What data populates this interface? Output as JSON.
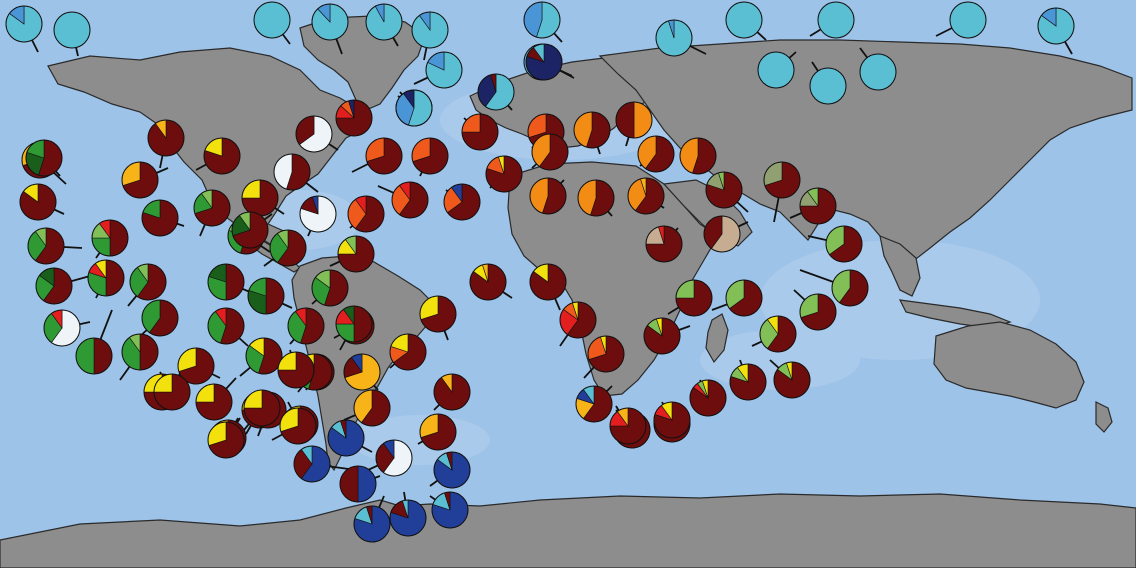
{
  "colors": {
    "ocean": "#9ec3e8",
    "ocean_shelf": "#b7d3ef",
    "land": "#8d8d8d",
    "categories": {
      "maroon": "#6e0d0d",
      "cyan": "#5bbfd4",
      "lightblue": "#4a95d6",
      "navy": "#1c2466",
      "royal": "#213f99",
      "red": "#e21e1e",
      "orange": "#ef5a1c",
      "amber": "#f38c14",
      "gold": "#f7b318",
      "yellow": "#f2e10d",
      "darkgreen": "#1a5e1c",
      "green": "#2f9a33",
      "lightgreen": "#82bf57",
      "sage": "#90a070",
      "tan": "#c6ad92",
      "white": "#eef4f8"
    }
  },
  "pies": [
    {
      "id": "arc-1",
      "comp": {
        "cyan": 0.85,
        "lightblue": 0.15
      }
    },
    {
      "id": "arc-2",
      "comp": {
        "cyan": 1.0
      }
    },
    {
      "id": "arc-3",
      "comp": {
        "cyan": 1.0
      }
    },
    {
      "id": "arc-4",
      "comp": {
        "cyan": 0.88,
        "lightblue": 0.12
      }
    },
    {
      "id": "arc-5",
      "comp": {
        "cyan": 0.92,
        "lightblue": 0.08
      }
    },
    {
      "id": "arc-6",
      "comp": {
        "cyan": 0.9,
        "lightblue": 0.1
      }
    },
    {
      "id": "arc-7",
      "comp": {
        "cyan": 0.82,
        "lightblue": 0.18
      }
    },
    {
      "id": "arc-8",
      "comp": {
        "cyan": 0.85,
        "navy": 0.1,
        "lightblue": 0.05
      }
    },
    {
      "id": "arc-9",
      "comp": {
        "cyan": 0.6,
        "navy": 0.35,
        "maroon": 0.05
      }
    },
    {
      "id": "arc-10",
      "comp": {
        "cyan": 0.55,
        "lightblue": 0.45
      }
    },
    {
      "id": "arc-11",
      "comp": {
        "cyan": 1.0
      }
    },
    {
      "id": "arc-12",
      "comp": {
        "cyan": 0.95,
        "lightblue": 0.05
      }
    },
    {
      "id": "arc-13",
      "comp": {
        "cyan": 1.0
      }
    },
    {
      "id": "arc-14",
      "comp": {
        "cyan": 1.0
      }
    },
    {
      "id": "arc-15",
      "comp": {
        "cyan": 1.0
      }
    },
    {
      "id": "arc-16",
      "comp": {
        "cyan": 1.0
      }
    },
    {
      "id": "arc-17",
      "comp": {
        "cyan": 1.0
      }
    },
    {
      "id": "arc-18",
      "comp": {
        "cyan": 1.0
      }
    },
    {
      "id": "arc-19",
      "comp": {
        "cyan": 0.85,
        "lightblue": 0.15
      }
    },
    {
      "id": "natl-1",
      "comp": {
        "navy": 0.8,
        "maroon": 0.1,
        "cyan": 0.1
      }
    },
    {
      "id": "natl-2",
      "comp": {
        "cyan": 0.55,
        "lightblue": 0.35,
        "navy": 0.1
      }
    },
    {
      "id": "natl-3",
      "comp": {
        "maroon": 0.75,
        "red": 0.12,
        "orange": 0.08,
        "navy": 0.05
      }
    },
    {
      "id": "natl-4",
      "comp": {
        "white": 0.65,
        "maroon": 0.35
      }
    },
    {
      "id": "natl-5",
      "comp": {
        "maroon": 0.7,
        "orange": 0.3
      }
    },
    {
      "id": "natl-6",
      "comp": {
        "maroon": 0.7,
        "orange": 0.3
      }
    },
    {
      "id": "natl-7",
      "comp": {
        "maroon": 0.75,
        "orange": 0.25
      }
    },
    {
      "id": "natl-8",
      "comp": {
        "maroon": 0.8,
        "orange": 0.15,
        "yellow": 0.05
      }
    },
    {
      "id": "natl-9",
      "comp": {
        "maroon": 0.6,
        "orange": 0.3,
        "red": 0.1
      }
    },
    {
      "id": "natl-10",
      "comp": {
        "maroon": 0.6,
        "orange": 0.3,
        "red": 0.1
      }
    },
    {
      "id": "natl-11",
      "comp": {
        "maroon": 0.65,
        "orange": 0.25,
        "royal": 0.1
      }
    },
    {
      "id": "natl-12",
      "comp": {
        "maroon": 0.55,
        "white": 0.45
      }
    },
    {
      "id": "natl-13",
      "comp": {
        "white": 0.8,
        "maroon": 0.15,
        "royal": 0.05
      }
    },
    {
      "id": "natl-14",
      "comp": {
        "maroon": 0.7,
        "orange": 0.3
      }
    },
    {
      "id": "med-1",
      "comp": {
        "maroon": 0.55,
        "amber": 0.45
      }
    },
    {
      "id": "med-2",
      "comp": {
        "amber": 0.5,
        "maroon": 0.5
      }
    },
    {
      "id": "med-3",
      "comp": {
        "maroon": 0.6,
        "amber": 0.4
      }
    },
    {
      "id": "med-4",
      "comp": {
        "maroon": 0.55,
        "amber": 0.45
      }
    },
    {
      "id": "med-5",
      "comp": {
        "maroon": 0.6,
        "amber": 0.4
      }
    },
    {
      "id": "med-6",
      "comp": {
        "maroon": 0.55,
        "amber": 0.45
      }
    },
    {
      "id": "med-7",
      "comp": {
        "maroon": 0.55,
        "amber": 0.45
      }
    },
    {
      "id": "med-8",
      "comp": {
        "maroon": 0.6,
        "amber": 0.35,
        "gold": 0.05
      }
    },
    {
      "id": "io-1",
      "comp": {
        "maroon": 0.8,
        "sage": 0.15,
        "lightgreen": 0.05
      }
    },
    {
      "id": "io-2",
      "comp": {
        "maroon": 0.7,
        "sage": 0.3
      }
    },
    {
      "id": "io-3",
      "comp": {
        "maroon": 0.75,
        "sage": 0.15,
        "lightgreen": 0.1
      }
    },
    {
      "id": "io-4",
      "comp": {
        "maroon": 0.75,
        "tan": 0.2,
        "red": 0.05
      }
    },
    {
      "id": "io-5",
      "comp": {
        "tan": 0.6,
        "maroon": 0.4
      }
    },
    {
      "id": "io-6",
      "comp": {
        "maroon": 0.65,
        "lightgreen": 0.35
      }
    },
    {
      "id": "io-7",
      "comp": {
        "maroon": 0.6,
        "lightgreen": 0.4
      }
    },
    {
      "id": "io-8",
      "comp": {
        "maroon": 0.65,
        "lightgreen": 0.35
      }
    },
    {
      "id": "io-9",
      "comp": {
        "maroon": 0.7,
        "lightgreen": 0.3
      }
    },
    {
      "id": "io-10",
      "comp": {
        "maroon": 0.6,
        "lightgreen": 0.3,
        "yellow": 0.1
      }
    },
    {
      "id": "io-11",
      "comp": {
        "maroon": 0.75,
        "lightgreen": 0.25
      }
    },
    {
      "id": "io-12",
      "comp": {
        "maroon": 0.85,
        "lightgreen": 0.1,
        "yellow": 0.05
      }
    },
    {
      "id": "io-13",
      "comp": {
        "maroon": 0.8,
        "lightgreen": 0.1,
        "yellow": 0.1
      }
    },
    {
      "id": "io-14",
      "comp": {
        "maroon": 0.85,
        "lightgreen": 0.1,
        "yellow": 0.05
      }
    },
    {
      "id": "io-15",
      "comp": {
        "maroon": 0.85,
        "red": 0.05,
        "lightgreen": 0.05,
        "yellow": 0.05
      }
    },
    {
      "id": "io-16",
      "comp": {
        "maroon": 0.85,
        "lightgreen": 0.15
      }
    },
    {
      "id": "satl-1",
      "comp": {
        "maroon": 0.85,
        "yellow": 0.1,
        "gold": 0.05
      }
    },
    {
      "id": "satl-2",
      "comp": {
        "maroon": 0.85,
        "yellow": 0.15
      }
    },
    {
      "id": "satl-3",
      "comp": {
        "maroon": 0.6,
        "red": 0.25,
        "orange": 0.1,
        "yellow": 0.05
      }
    },
    {
      "id": "satl-4",
      "comp": {
        "maroon": 0.7,
        "orange": 0.25,
        "yellow": 0.05
      }
    },
    {
      "id": "satl-5",
      "comp": {
        "maroon": 0.85,
        "red": 0.1,
        "gold": 0.05
      }
    },
    {
      "id": "satl-6",
      "comp": {
        "maroon": 0.6,
        "gold": 0.2,
        "royal": 0.1,
        "cyan": 0.1
      }
    },
    {
      "id": "satl-7",
      "comp": {
        "maroon": 0.75,
        "red": 0.15,
        "gold": 0.1
      }
    },
    {
      "id": "satl-8",
      "comp": {
        "maroon": 0.8,
        "red": 0.1,
        "yellow": 0.1
      }
    },
    {
      "id": "sam-1",
      "comp": {
        "maroon": 0.7,
        "yellow": 0.3
      }
    },
    {
      "id": "sam-2",
      "comp": {
        "maroon": 0.65,
        "orange": 0.15,
        "yellow": 0.2
      }
    },
    {
      "id": "sam-3",
      "comp": {
        "gold": 0.7,
        "maroon": 0.2,
        "royal": 0.1
      }
    },
    {
      "id": "sam-4",
      "comp": {
        "maroon": 0.9,
        "gold": 0.1
      }
    },
    {
      "id": "sam-5",
      "comp": {
        "maroon": 0.6,
        "gold": 0.4
      }
    },
    {
      "id": "sam-6",
      "comp": {
        "maroon": 0.7,
        "gold": 0.3
      }
    },
    {
      "id": "sam-7",
      "comp": {
        "maroon": 0.8,
        "yellow": 0.15,
        "lightgreen": 0.05
      }
    },
    {
      "id": "sam-8",
      "comp": {
        "maroon": 0.85,
        "gold": 0.15
      }
    },
    {
      "id": "so-1",
      "comp": {
        "royal": 0.85,
        "cyan": 0.1,
        "maroon": 0.05
      }
    },
    {
      "id": "so-2",
      "comp": {
        "royal": 0.6,
        "maroon": 0.3,
        "cyan": 0.1
      }
    },
    {
      "id": "so-3",
      "comp": {
        "white": 0.6,
        "maroon": 0.3,
        "royal": 0.1
      }
    },
    {
      "id": "so-4",
      "comp": {
        "royal": 0.85,
        "cyan": 0.1,
        "maroon": 0.05
      }
    },
    {
      "id": "so-5",
      "comp": {
        "royal": 0.8,
        "cyan": 0.15,
        "maroon": 0.05
      }
    },
    {
      "id": "so-6",
      "comp": {
        "royal": 0.8,
        "cyan": 0.15,
        "maroon": 0.05
      }
    },
    {
      "id": "so-7",
      "comp": {
        "royal": 0.8,
        "maroon": 0.15,
        "cyan": 0.05
      }
    },
    {
      "id": "so-8",
      "comp": {
        "royal": 0.5,
        "maroon": 0.5
      }
    },
    {
      "id": "pac-1",
      "comp": {
        "maroon": 0.9,
        "gold": 0.1
      }
    },
    {
      "id": "pac-2",
      "comp": {
        "maroon": 0.8,
        "yellow": 0.2
      }
    },
    {
      "id": "pac-3",
      "comp": {
        "maroon": 0.7,
        "gold": 0.3
      }
    },
    {
      "id": "pac-4",
      "comp": {
        "maroon": 0.7,
        "gold": 0.3
      }
    },
    {
      "id": "pac-5",
      "comp": {
        "maroon": 0.85,
        "yellow": 0.15
      }
    },
    {
      "id": "pac-6",
      "comp": {
        "maroon": 0.8,
        "green": 0.2
      }
    },
    {
      "id": "pac-7",
      "comp": {
        "maroon": 0.75,
        "yellow": 0.25
      }
    },
    {
      "id": "pac-8",
      "comp": {
        "maroon": 0.7,
        "green": 0.2,
        "lightgreen": 0.1
      }
    },
    {
      "id": "pac-9",
      "comp": {
        "maroon": 0.6,
        "green": 0.3,
        "lightgreen": 0.1
      }
    },
    {
      "id": "pac-10",
      "comp": {
        "maroon": 0.5,
        "green": 0.25,
        "lightgreen": 0.15,
        "red": 0.1
      }
    },
    {
      "id": "pac-11",
      "comp": {
        "maroon": 0.55,
        "green": 0.25,
        "lightgreen": 0.2
      }
    },
    {
      "id": "pac-12",
      "comp": {
        "maroon": 0.6,
        "green": 0.3,
        "lightgreen": 0.1
      }
    },
    {
      "id": "pac-13",
      "comp": {
        "maroon": 0.75,
        "yellow": 0.15,
        "lightgreen": 0.1
      }
    },
    {
      "id": "pac-14",
      "comp": {
        "maroon": 0.6,
        "green": 0.25,
        "darkgreen": 0.15
      }
    },
    {
      "id": "pac-15",
      "comp": {
        "maroon": 0.5,
        "green": 0.3,
        "red": 0.1,
        "yellow": 0.1
      }
    },
    {
      "id": "pac-16",
      "comp": {
        "maroon": 0.6,
        "green": 0.3,
        "lightgreen": 0.1
      }
    },
    {
      "id": "pac-17",
      "comp": {
        "maroon": 0.5,
        "green": 0.3,
        "darkgreen": 0.2
      }
    },
    {
      "id": "pac-18",
      "comp": {
        "maroon": 0.5,
        "darkgreen": 0.3,
        "green": 0.2
      }
    },
    {
      "id": "pac-19",
      "comp": {
        "maroon": 0.55,
        "green": 0.3,
        "lightgreen": 0.15
      }
    },
    {
      "id": "pac-20",
      "comp": {
        "maroon": 0.6,
        "green": 0.4
      }
    },
    {
      "id": "pac-21",
      "comp": {
        "maroon": 0.55,
        "green": 0.35,
        "red": 0.1
      }
    },
    {
      "id": "pac-22",
      "comp": {
        "maroon": 0.55,
        "green": 0.35,
        "red": 0.1
      }
    },
    {
      "id": "pac-23",
      "comp": {
        "white": 0.6,
        "green": 0.3,
        "red": 0.1
      }
    },
    {
      "id": "pac-24",
      "comp": {
        "maroon": 0.5,
        "green": 0.5
      }
    },
    {
      "id": "pac-25",
      "comp": {
        "maroon": 0.5,
        "green": 0.4,
        "lightgreen": 0.1
      }
    },
    {
      "id": "pac-26",
      "comp": {
        "maroon": 0.5,
        "green": 0.25,
        "red": 0.15,
        "darkgreen": 0.1
      }
    },
    {
      "id": "pac-27",
      "comp": {
        "maroon": 0.55,
        "darkgreen": 0.25,
        "green": 0.2
      }
    },
    {
      "id": "pac-28",
      "comp": {
        "maroon": 0.55,
        "green": 0.3,
        "yellow": 0.15
      }
    },
    {
      "id": "pac-29",
      "comp": {
        "maroon": 0.55,
        "green": 0.3,
        "yellow": 0.15
      }
    },
    {
      "id": "pac-30",
      "comp": {
        "maroon": 0.7,
        "yellow": 0.3
      }
    },
    {
      "id": "pac-31",
      "comp": {
        "maroon": 0.75,
        "yellow": 0.25
      }
    },
    {
      "id": "pac-32",
      "comp": {
        "maroon": 0.75,
        "yellow": 0.25
      }
    },
    {
      "id": "pac-33",
      "comp": {
        "maroon": 0.7,
        "yellow": 0.2,
        "gold": 0.1
      }
    },
    {
      "id": "pac-34",
      "comp": {
        "maroon": 0.75,
        "yellow": 0.25
      }
    },
    {
      "id": "pac-35",
      "comp": {
        "maroon": 0.8,
        "yellow": 0.2
      }
    },
    {
      "id": "pac-36",
      "comp": {
        "maroon": 0.75,
        "yellow": 0.25
      }
    },
    {
      "id": "pac-37",
      "comp": {
        "maroon": 0.7,
        "yellow": 0.3
      }
    },
    {
      "id": "pac-38",
      "comp": {
        "maroon": 0.7,
        "yellow": 0.3
      }
    },
    {
      "id": "pac-39",
      "comp": {
        "maroon": 0.75,
        "yellow": 0.25
      }
    },
    {
      "id": "pac-40",
      "comp": {
        "maroon": 0.7,
        "yellow": 0.3
      }
    },
    {
      "id": "pac-41",
      "comp": {
        "maroon": 0.75,
        "yellow": 0.25
      }
    },
    {
      "id": "pac-42",
      "comp": {
        "maroon": 0.7,
        "darkgreen": 0.2,
        "lightgreen": 0.1
      }
    }
  ]
}
